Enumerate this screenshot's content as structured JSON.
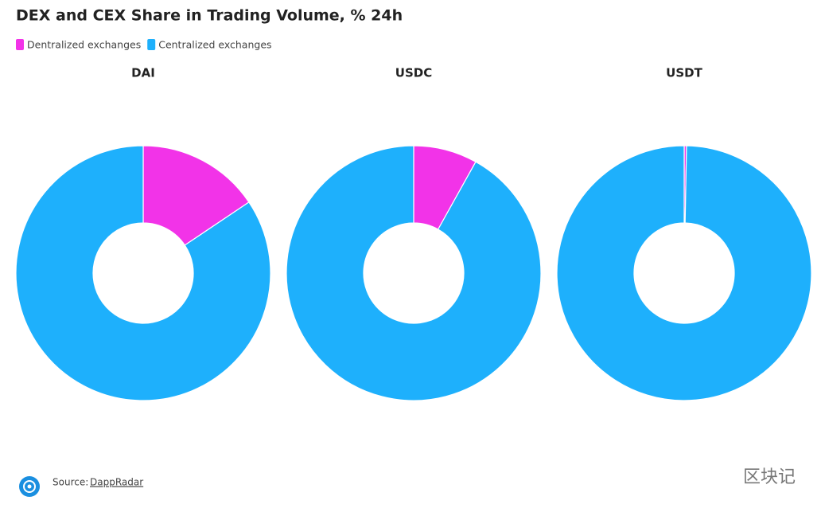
{
  "title": "DEX and CEX Share in Trading Volume, % 24h",
  "source": {
    "label": "Source:",
    "name": "DappRadar"
  },
  "watermark": "区块记",
  "chart_data": [
    {
      "type": "pie",
      "title": "DAI",
      "categories": [
        "Dentralized exchanges",
        "Centralized exchanges"
      ],
      "values": [
        15.6,
        84.4
      ],
      "colors": [
        "#f233e8",
        "#1eb0fc"
      ],
      "donut": true
    },
    {
      "type": "pie",
      "title": "USDC",
      "categories": [
        "Dentralized exchanges",
        "Centralized exchanges"
      ],
      "values": [
        8.1,
        91.9
      ],
      "colors": [
        "#f233e8",
        "#1eb0fc"
      ],
      "donut": true
    },
    {
      "type": "pie",
      "title": "USDT",
      "categories": [
        "Dentralized exchanges",
        "Centralized exchanges"
      ],
      "values": [
        0.3,
        99.7
      ],
      "colors": [
        "#f233e8",
        "#1eb0fc"
      ],
      "donut": true
    }
  ]
}
